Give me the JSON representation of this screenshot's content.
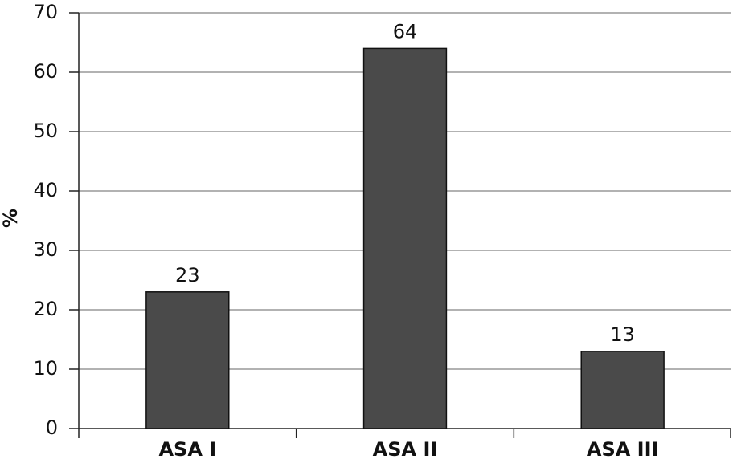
{
  "chart_data": {
    "type": "bar",
    "y_label": "%",
    "categories": [
      "ASA I",
      "ASA II",
      "ASA III"
    ],
    "values": [
      23,
      64,
      13
    ],
    "color": "#4a4a4a",
    "ylim": [
      0,
      70
    ],
    "yticks": [
      0,
      10,
      20,
      30,
      40,
      50,
      60,
      70
    ],
    "grid": true
  }
}
